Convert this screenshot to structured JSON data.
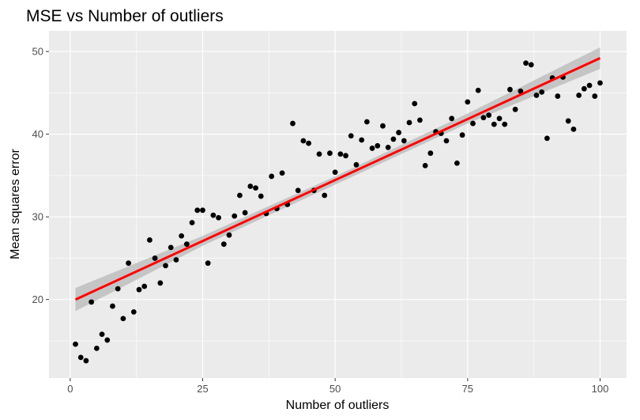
{
  "chart_data": {
    "type": "scatter",
    "title": "MSE vs Number of outliers",
    "xlabel": "Number of outliers",
    "ylabel": "Mean squares error",
    "xlim": [
      -4,
      105
    ],
    "ylim": [
      10.5,
      52.5
    ],
    "xticks": [
      0,
      25,
      50,
      75,
      100
    ],
    "yticks": [
      20,
      30,
      40,
      50
    ],
    "x_tick_labels": [
      "0",
      "25",
      "50",
      "75",
      "100"
    ],
    "y_tick_labels": [
      "20",
      "30",
      "40",
      "50"
    ],
    "grid": true,
    "background": "#ebebeb",
    "point_color": "#000000",
    "fit_color": "#ff0000",
    "band_color": "#bebebe",
    "points": [
      [
        1,
        14.6
      ],
      [
        2,
        13.0
      ],
      [
        3,
        12.6
      ],
      [
        4,
        19.7
      ],
      [
        5,
        14.1
      ],
      [
        6,
        15.8
      ],
      [
        7,
        15.1
      ],
      [
        8,
        19.2
      ],
      [
        9,
        21.3
      ],
      [
        10,
        17.7
      ],
      [
        11,
        24.4
      ],
      [
        12,
        18.5
      ],
      [
        13,
        21.2
      ],
      [
        14,
        21.6
      ],
      [
        15,
        27.2
      ],
      [
        16,
        25.0
      ],
      [
        17,
        22.0
      ],
      [
        18,
        24.1
      ],
      [
        19,
        26.3
      ],
      [
        20,
        24.8
      ],
      [
        21,
        27.7
      ],
      [
        22,
        26.7
      ],
      [
        23,
        29.3
      ],
      [
        24,
        30.8
      ],
      [
        25,
        30.8
      ],
      [
        26,
        24.4
      ],
      [
        27,
        30.2
      ],
      [
        28,
        29.9
      ],
      [
        29,
        26.7
      ],
      [
        30,
        27.8
      ],
      [
        31,
        30.1
      ],
      [
        32,
        32.6
      ],
      [
        33,
        30.5
      ],
      [
        34,
        33.7
      ],
      [
        35,
        33.5
      ],
      [
        36,
        32.5
      ],
      [
        37,
        30.4
      ],
      [
        38,
        34.9
      ],
      [
        39,
        31.0
      ],
      [
        40,
        35.3
      ],
      [
        41,
        31.5
      ],
      [
        42,
        41.3
      ],
      [
        43,
        33.2
      ],
      [
        44,
        39.2
      ],
      [
        45,
        38.9
      ],
      [
        46,
        33.2
      ],
      [
        47,
        37.6
      ],
      [
        48,
        32.6
      ],
      [
        49,
        37.7
      ],
      [
        50,
        35.4
      ],
      [
        51,
        37.6
      ],
      [
        52,
        37.4
      ],
      [
        53,
        39.8
      ],
      [
        54,
        36.3
      ],
      [
        55,
        39.3
      ],
      [
        56,
        41.5
      ],
      [
        57,
        38.3
      ],
      [
        58,
        38.6
      ],
      [
        59,
        41.0
      ],
      [
        60,
        38.4
      ],
      [
        61,
        39.4
      ],
      [
        62,
        40.2
      ],
      [
        63,
        39.2
      ],
      [
        64,
        41.4
      ],
      [
        65,
        43.7
      ],
      [
        66,
        41.7
      ],
      [
        67,
        36.2
      ],
      [
        68,
        37.7
      ],
      [
        69,
        40.3
      ],
      [
        70,
        40.1
      ],
      [
        71,
        39.2
      ],
      [
        72,
        41.9
      ],
      [
        73,
        36.5
      ],
      [
        74,
        39.9
      ],
      [
        75,
        43.9
      ],
      [
        76,
        41.3
      ],
      [
        77,
        45.3
      ],
      [
        78,
        42.0
      ],
      [
        79,
        42.3
      ],
      [
        80,
        41.2
      ],
      [
        81,
        41.9
      ],
      [
        82,
        41.2
      ],
      [
        83,
        45.4
      ],
      [
        84,
        43.0
      ],
      [
        85,
        45.2
      ],
      [
        86,
        48.6
      ],
      [
        87,
        48.4
      ],
      [
        88,
        44.7
      ],
      [
        89,
        45.1
      ],
      [
        90,
        39.5
      ],
      [
        91,
        46.8
      ],
      [
        92,
        44.6
      ],
      [
        93,
        46.9
      ],
      [
        94,
        41.6
      ],
      [
        95,
        40.6
      ],
      [
        96,
        44.7
      ],
      [
        97,
        45.5
      ],
      [
        98,
        45.9
      ],
      [
        99,
        44.6
      ],
      [
        100,
        46.2
      ]
    ],
    "fit": {
      "x": [
        1,
        100
      ],
      "y": [
        20.0,
        49.2
      ]
    },
    "band": {
      "x": [
        1,
        25,
        50,
        75,
        100
      ],
      "lower": [
        18.6,
        26.5,
        33.9,
        41.3,
        47.9
      ],
      "upper": [
        21.4,
        27.7,
        34.9,
        42.5,
        50.5
      ]
    }
  }
}
